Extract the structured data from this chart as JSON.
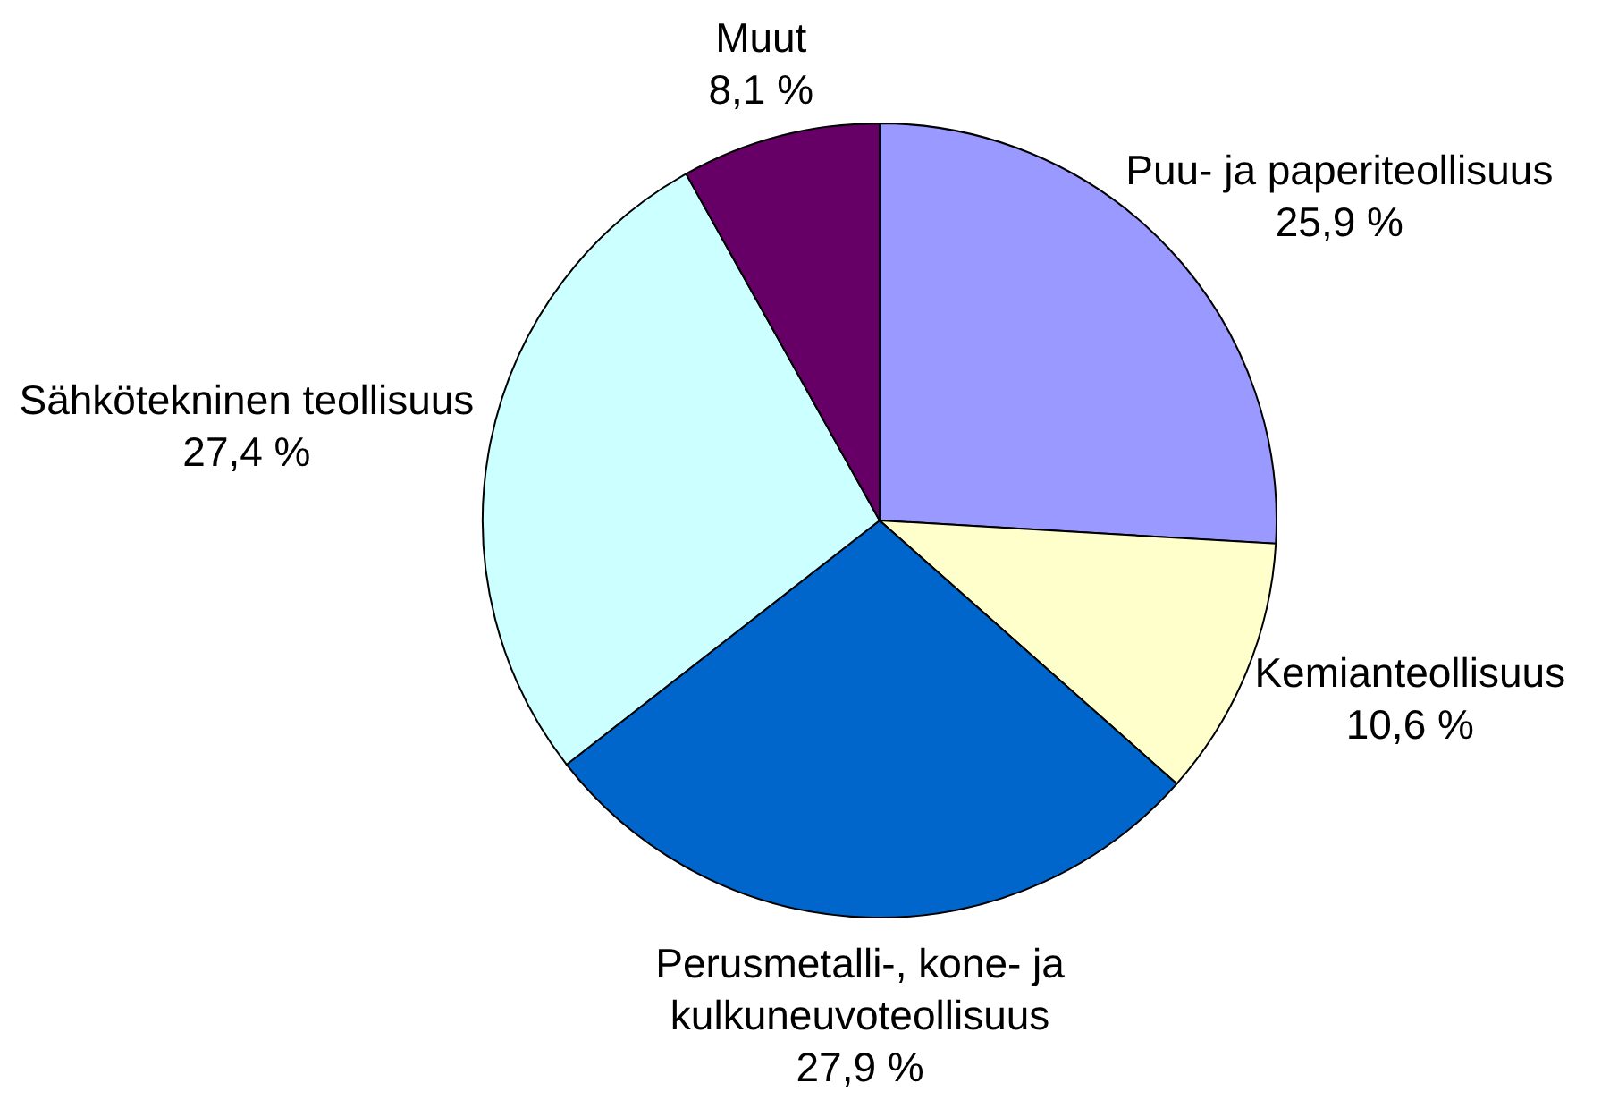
{
  "chart_data": {
    "type": "pie",
    "categories": [
      "Puu- ja paperiteollisuus",
      "Kemianteollisuus",
      "Perusmetalli-, kone- ja kulkuneuvoteollisuus",
      "Sähkötekninen teollisuus",
      "Muut"
    ],
    "values": [
      25.9,
      10.6,
      27.9,
      27.4,
      8.1
    ],
    "colors": [
      "#9999ff",
      "#ffffcc",
      "#0066cc",
      "#ccffff",
      "#660066"
    ],
    "value_labels": [
      "25,9 %",
      "10,6 %",
      "27,9 %",
      "27,4 %",
      "8,1 %"
    ]
  }
}
